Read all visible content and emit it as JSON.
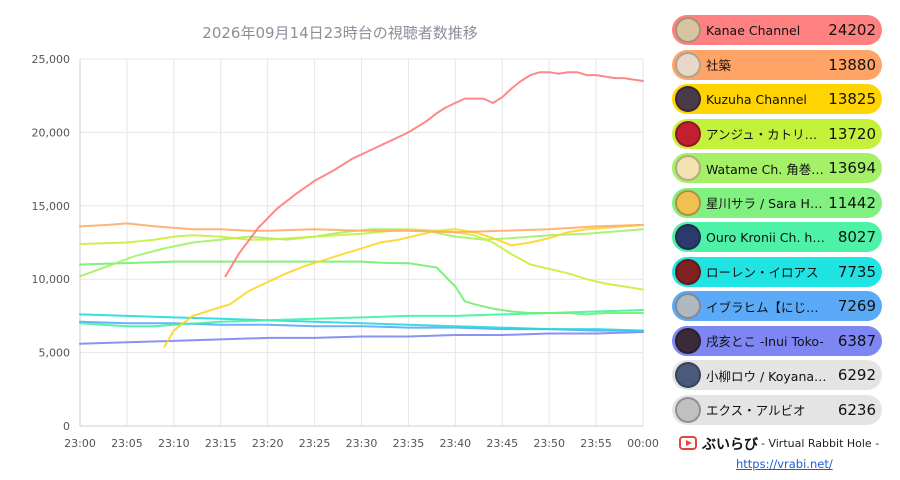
{
  "chart_data": {
    "type": "line",
    "title": "2026年09月14日23時台の視聴者数推移",
    "xlabel": "",
    "ylabel": "",
    "ylim": [
      0,
      25000
    ],
    "yticks": [
      0,
      5000,
      10000,
      15000,
      20000,
      25000
    ],
    "ytick_labels": [
      "0",
      "5,000",
      "10,000",
      "15,000",
      "20,000",
      "25,000"
    ],
    "xlim": [
      0,
      60
    ],
    "xticks": [
      0,
      5,
      10,
      15,
      20,
      25,
      30,
      35,
      40,
      45,
      50,
      55,
      60
    ],
    "xtick_labels": [
      "23:00",
      "23:05",
      "23:10",
      "23:15",
      "23:20",
      "23:25",
      "23:30",
      "23:35",
      "23:40",
      "23:45",
      "23:50",
      "23:55",
      "00:00"
    ],
    "grid": true,
    "legend": "right",
    "series": [
      {
        "name": "Kanae Channel",
        "value": 24202,
        "color": "#ff7b7b",
        "x": [
          15.5,
          17,
          19,
          21,
          23,
          25,
          27,
          29,
          31,
          33,
          35,
          37,
          38,
          39,
          40,
          41,
          42,
          43,
          44,
          45,
          46,
          47,
          48,
          49,
          50,
          51,
          52,
          53,
          54,
          55,
          56,
          57,
          58,
          59,
          60
        ],
        "y": [
          10200,
          11800,
          13500,
          14800,
          15800,
          16700,
          17400,
          18200,
          18800,
          19400,
          20000,
          20800,
          21300,
          21700,
          22000,
          22300,
          22300,
          22300,
          22000,
          22400,
          23000,
          23500,
          23900,
          24100,
          24100,
          24000,
          24100,
          24100,
          23900,
          23900,
          23800,
          23700,
          23700,
          23600,
          23500
        ]
      },
      {
        "name": "社築",
        "value": 13880,
        "color": "#ffab66",
        "x": [
          0,
          3,
          5,
          8,
          10,
          12,
          15,
          18,
          20,
          25,
          30,
          35,
          40,
          45,
          50,
          55,
          60
        ],
        "y": [
          13600,
          13700,
          13800,
          13600,
          13500,
          13400,
          13400,
          13300,
          13300,
          13400,
          13300,
          13300,
          13200,
          13300,
          13400,
          13600,
          13700
        ]
      },
      {
        "name": "Kuzuha Channel",
        "value": 13825,
        "color": "#ffd426",
        "x": [
          9,
          10,
          12,
          14,
          16,
          18,
          20,
          22,
          24,
          26,
          28,
          30,
          32,
          34,
          36,
          38,
          40,
          42,
          44,
          46,
          48,
          50,
          52,
          54,
          56,
          58,
          60
        ],
        "y": [
          5400,
          6500,
          7500,
          7900,
          8300,
          9200,
          9800,
          10400,
          10900,
          11300,
          11700,
          12100,
          12500,
          12700,
          13000,
          13300,
          13400,
          13200,
          12800,
          12300,
          12500,
          12800,
          13200,
          13400,
          13500,
          13600,
          13700
        ]
      },
      {
        "name": "アンジュ・カトリーナ",
        "value": 13720,
        "color": "#c8f03a",
        "x": [
          0,
          5,
          8,
          10,
          12,
          15,
          18,
          20,
          25,
          30,
          35,
          38,
          40,
          42,
          44,
          46,
          48,
          50,
          52,
          54,
          56,
          58,
          60
        ],
        "y": [
          12400,
          12500,
          12700,
          12900,
          13000,
          12900,
          12700,
          12700,
          12900,
          13100,
          13400,
          13300,
          13200,
          13000,
          12500,
          11700,
          11000,
          10700,
          10400,
          10000,
          9700,
          9500,
          9300
        ]
      },
      {
        "name": "Watame Ch. 角巻わため",
        "value": 13694,
        "color": "#a4f066",
        "x": [
          0,
          3,
          6,
          9,
          12,
          15,
          18,
          20,
          22,
          25,
          28,
          31,
          34,
          37,
          40,
          43,
          46,
          50,
          54,
          58,
          60
        ],
        "y": [
          10200,
          10900,
          11600,
          12100,
          12500,
          12700,
          12900,
          12800,
          12700,
          12900,
          13200,
          13400,
          13400,
          13300,
          12900,
          12700,
          12800,
          13000,
          13100,
          13300,
          13400
        ]
      },
      {
        "name": "星川サラ / Sara Hoshikawa",
        "value": 11442,
        "color": "#70f070",
        "x": [
          0,
          5,
          10,
          15,
          20,
          25,
          30,
          33,
          35,
          38,
          40,
          41,
          42,
          44,
          46,
          48,
          50,
          52,
          54,
          56,
          58,
          60
        ],
        "y": [
          11000,
          11100,
          11200,
          11200,
          11200,
          11200,
          11200,
          11100,
          11100,
          10800,
          9500,
          8500,
          8300,
          8000,
          7800,
          7700,
          7700,
          7700,
          7600,
          7700,
          7700,
          7700
        ]
      },
      {
        "name": "Ouro Kronii Ch. hololive-EN",
        "value": 8027,
        "color": "#3ef2a6",
        "x": [
          0,
          5,
          8,
          10,
          15,
          20,
          25,
          30,
          35,
          40,
          45,
          50,
          55,
          60
        ],
        "y": [
          7000,
          6800,
          6800,
          6900,
          7100,
          7200,
          7300,
          7400,
          7500,
          7500,
          7600,
          7700,
          7800,
          7900
        ]
      },
      {
        "name": "ローレン・イロアス",
        "value": 7735,
        "color": "#22d8e0",
        "x": [
          0,
          5,
          10,
          15,
          20,
          25,
          30,
          35,
          40,
          45,
          50,
          55,
          60
        ],
        "y": [
          7600,
          7500,
          7400,
          7300,
          7200,
          7100,
          7000,
          6900,
          6800,
          6700,
          6600,
          6600,
          6500
        ]
      },
      {
        "name": "イブラヒム【にじさんじ】",
        "value": 7269,
        "color": "#5aaaf7",
        "x": [
          0,
          5,
          10,
          15,
          20,
          25,
          30,
          35,
          40,
          45,
          50,
          55,
          60
        ],
        "y": [
          7100,
          7000,
          7000,
          6900,
          6900,
          6800,
          6800,
          6700,
          6700,
          6600,
          6600,
          6500,
          6500
        ]
      },
      {
        "name": "戌亥とこ -Inui Toko-",
        "value": 6387,
        "color": "#7d86f2",
        "x": [
          0,
          5,
          10,
          15,
          20,
          25,
          30,
          35,
          40,
          45,
          50,
          55,
          60
        ],
        "y": [
          5600,
          5700,
          5800,
          5900,
          6000,
          6000,
          6100,
          6100,
          6200,
          6200,
          6300,
          6300,
          6400
        ]
      },
      {
        "name": "小柳ロウ / Koyanagi Rou",
        "value": 6292,
        "color": "#e6e6e6",
        "x": [
          0,
          60
        ],
        "y": [
          null,
          null
        ]
      },
      {
        "name": "エクス・アルビオ",
        "value": 6236,
        "color": "#e6e6e6",
        "x": [
          0,
          60
        ],
        "y": [
          null,
          null
        ]
      }
    ]
  },
  "legend": {
    "items": [
      {
        "name": "Kanae Channel",
        "value": "24202",
        "color": "#ff8080",
        "avatar": "#d8c4a0"
      },
      {
        "name": "社築",
        "value": "13880",
        "color": "#ffa466",
        "avatar": "#e8d8c8"
      },
      {
        "name": "Kuzuha Channel",
        "value": "13825",
        "color": "#ffd400",
        "avatar": "#4a3a4a"
      },
      {
        "name": "アンジュ・カトリーナ",
        "value": "13720",
        "color": "#c4f23a",
        "avatar": "#c02030"
      },
      {
        "name": "Watame Ch. 角巻わため",
        "value": "13694",
        "color": "#a4f066",
        "avatar": "#f3e3b0"
      },
      {
        "name": "星川サラ / Sara Hoshikawa",
        "value": "11442",
        "color": "#80f080",
        "avatar": "#f0c050"
      },
      {
        "name": "Ouro Kronii Ch. hololive-EN",
        "value": "8027",
        "color": "#4ef2a6",
        "avatar": "#2a3a6a"
      },
      {
        "name": "ローレン・イロアス",
        "value": "7735",
        "color": "#20e4e4",
        "avatar": "#802020"
      },
      {
        "name": "イブラヒム【にじさんじ】",
        "value": "7269",
        "color": "#5aaaf7",
        "avatar": "#b0b8c0"
      },
      {
        "name": "戌亥とこ -Inui Toko-",
        "value": "6387",
        "color": "#7d86f2",
        "avatar": "#3a2a3a"
      },
      {
        "name": "小柳ロウ / Koyanagi Rou",
        "value": "6292",
        "color": "#e4e4e4",
        "avatar": "#4a5a7a"
      },
      {
        "name": "エクス・アルビオ",
        "value": "6236",
        "color": "#e4e4e4",
        "avatar": "#c0c0c0"
      }
    ]
  },
  "brand": {
    "name": "ぶいらび",
    "tagline": "- Virtual Rabbit Hole -",
    "url": "https://vrabi.net/",
    "icon": "play-icon"
  }
}
